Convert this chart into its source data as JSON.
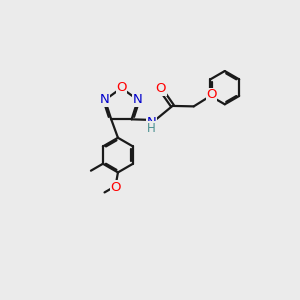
{
  "bg_color": "#ebebeb",
  "bond_color": "#1a1a1a",
  "bond_width": 1.6,
  "atom_colors": {
    "O": "#ff0000",
    "N": "#0000cc",
    "C": "#1a1a1a",
    "H": "#4a9090"
  },
  "fig_width": 3.0,
  "fig_height": 3.0,
  "dpi": 100,
  "xlim": [
    0,
    10
  ],
  "ylim": [
    0,
    10
  ]
}
